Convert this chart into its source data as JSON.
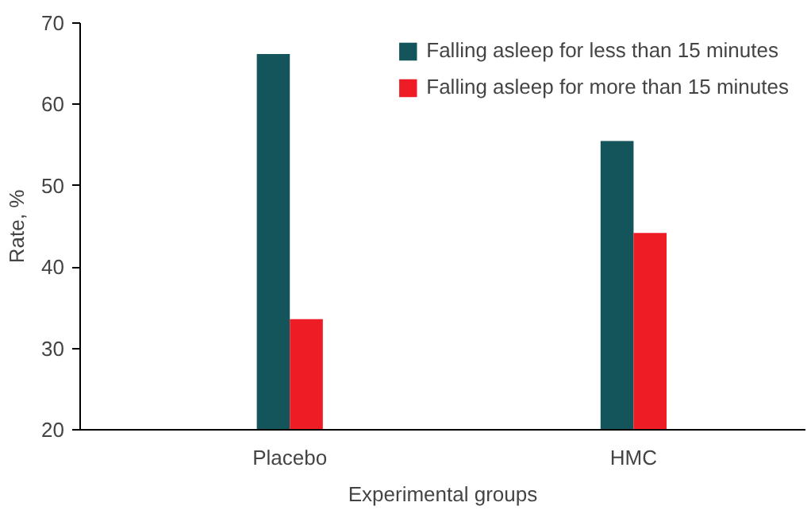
{
  "chart_data": {
    "type": "bar",
    "xlabel": "Experimental groups",
    "ylabel": "Rate, %",
    "categories": [
      "Placebo",
      "HMC"
    ],
    "series": [
      {
        "name": "Falling asleep for less than 15 minutes",
        "color": "#13555a",
        "values": [
          66.2,
          55.5
        ]
      },
      {
        "name": "Falling asleep for more than 15 minutes",
        "color": "#ee1c25",
        "values": [
          33.6,
          44.2
        ]
      }
    ],
    "ylim": [
      20,
      70
    ],
    "yticks": [
      20,
      30,
      40,
      50,
      60,
      70
    ],
    "grid": false,
    "legend": "top right"
  }
}
